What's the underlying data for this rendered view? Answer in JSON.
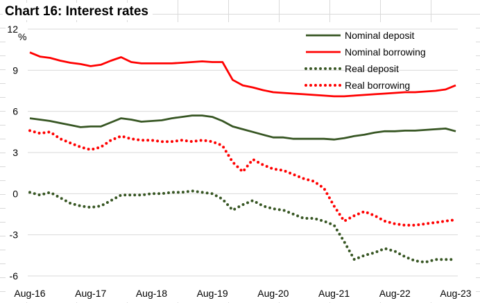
{
  "title": "Chart 16: Interest rates",
  "chart_data": {
    "type": "line",
    "title": "Chart 16: Interest rates",
    "ylabel": "%",
    "xlabel": "",
    "ylim": [
      -6,
      12
    ],
    "yticks": [
      12,
      9,
      6,
      3,
      0,
      -3,
      -6
    ],
    "x_tick_labels": [
      "Aug-16",
      "Aug-17",
      "Aug-18",
      "Aug-19",
      "Aug-20",
      "Aug-21",
      "Aug-22",
      "Aug-23"
    ],
    "x": [
      "Aug-16",
      "Oct-16",
      "Dec-16",
      "Feb-17",
      "Apr-17",
      "Jun-17",
      "Aug-17",
      "Oct-17",
      "Dec-17",
      "Feb-18",
      "Apr-18",
      "Jun-18",
      "Aug-18",
      "Oct-18",
      "Dec-18",
      "Feb-19",
      "Apr-19",
      "Jun-19",
      "Aug-19",
      "Oct-19",
      "Dec-19",
      "Feb-20",
      "Apr-20",
      "Jun-20",
      "Aug-20",
      "Oct-20",
      "Dec-20",
      "Feb-21",
      "Apr-21",
      "Jun-21",
      "Aug-21",
      "Oct-21",
      "Dec-21",
      "Feb-22",
      "Apr-22",
      "Jun-22",
      "Aug-22",
      "Oct-22",
      "Dec-22",
      "Feb-23",
      "Apr-23",
      "Jun-23",
      "Aug-23"
    ],
    "legend_position": "top-right",
    "grid": true,
    "series": [
      {
        "name": "Nominal deposit",
        "color": "#375623",
        "style": "solid",
        "values": [
          5.5,
          5.4,
          5.3,
          5.15,
          5.0,
          4.85,
          4.9,
          4.9,
          5.2,
          5.5,
          5.4,
          5.25,
          5.3,
          5.35,
          5.5,
          5.6,
          5.7,
          5.7,
          5.6,
          5.3,
          4.9,
          4.7,
          4.5,
          4.3,
          4.1,
          4.1,
          4.0,
          4.0,
          4.0,
          4.0,
          3.95,
          4.05,
          4.2,
          4.3,
          4.45,
          4.55,
          4.55,
          4.6,
          4.6,
          4.65,
          4.7,
          4.75,
          4.55
        ]
      },
      {
        "name": "Nominal borrowing",
        "color": "#ff0000",
        "style": "solid",
        "values": [
          10.3,
          10.0,
          9.9,
          9.7,
          9.55,
          9.45,
          9.3,
          9.4,
          9.7,
          9.95,
          9.6,
          9.5,
          9.5,
          9.5,
          9.5,
          9.55,
          9.6,
          9.65,
          9.6,
          9.6,
          8.3,
          7.9,
          7.75,
          7.55,
          7.4,
          7.35,
          7.3,
          7.25,
          7.2,
          7.15,
          7.1,
          7.1,
          7.15,
          7.2,
          7.25,
          7.3,
          7.35,
          7.4,
          7.4,
          7.45,
          7.5,
          7.6,
          7.9
        ]
      },
      {
        "name": "Real deposit",
        "color": "#375623",
        "style": "dotted",
        "values": [
          0.1,
          -0.1,
          0.1,
          -0.3,
          -0.7,
          -0.9,
          -1.0,
          -0.9,
          -0.5,
          -0.1,
          -0.1,
          -0.1,
          0.0,
          0.0,
          0.1,
          0.1,
          0.2,
          0.1,
          0.0,
          -0.4,
          -1.2,
          -0.8,
          -0.5,
          -0.9,
          -1.1,
          -1.2,
          -1.5,
          -1.8,
          -1.8,
          -2.0,
          -2.3,
          -3.5,
          -4.8,
          -4.5,
          -4.3,
          -4.0,
          -4.2,
          -4.6,
          -4.9,
          -5.0,
          -4.8,
          -4.8,
          -4.8
        ]
      },
      {
        "name": "Real borrowing",
        "color": "#ff0000",
        "style": "dotted",
        "values": [
          4.6,
          4.4,
          4.5,
          4.0,
          3.7,
          3.4,
          3.2,
          3.4,
          3.9,
          4.2,
          4.0,
          3.9,
          3.9,
          3.8,
          3.8,
          3.9,
          3.8,
          3.9,
          3.8,
          3.5,
          2.3,
          1.6,
          2.5,
          2.1,
          1.8,
          1.7,
          1.4,
          1.1,
          0.9,
          0.4,
          -0.9,
          -2.0,
          -1.6,
          -1.3,
          -1.6,
          -2.0,
          -2.2,
          -2.3,
          -2.3,
          -2.2,
          -2.1,
          -2.0,
          -1.9
        ]
      }
    ]
  }
}
